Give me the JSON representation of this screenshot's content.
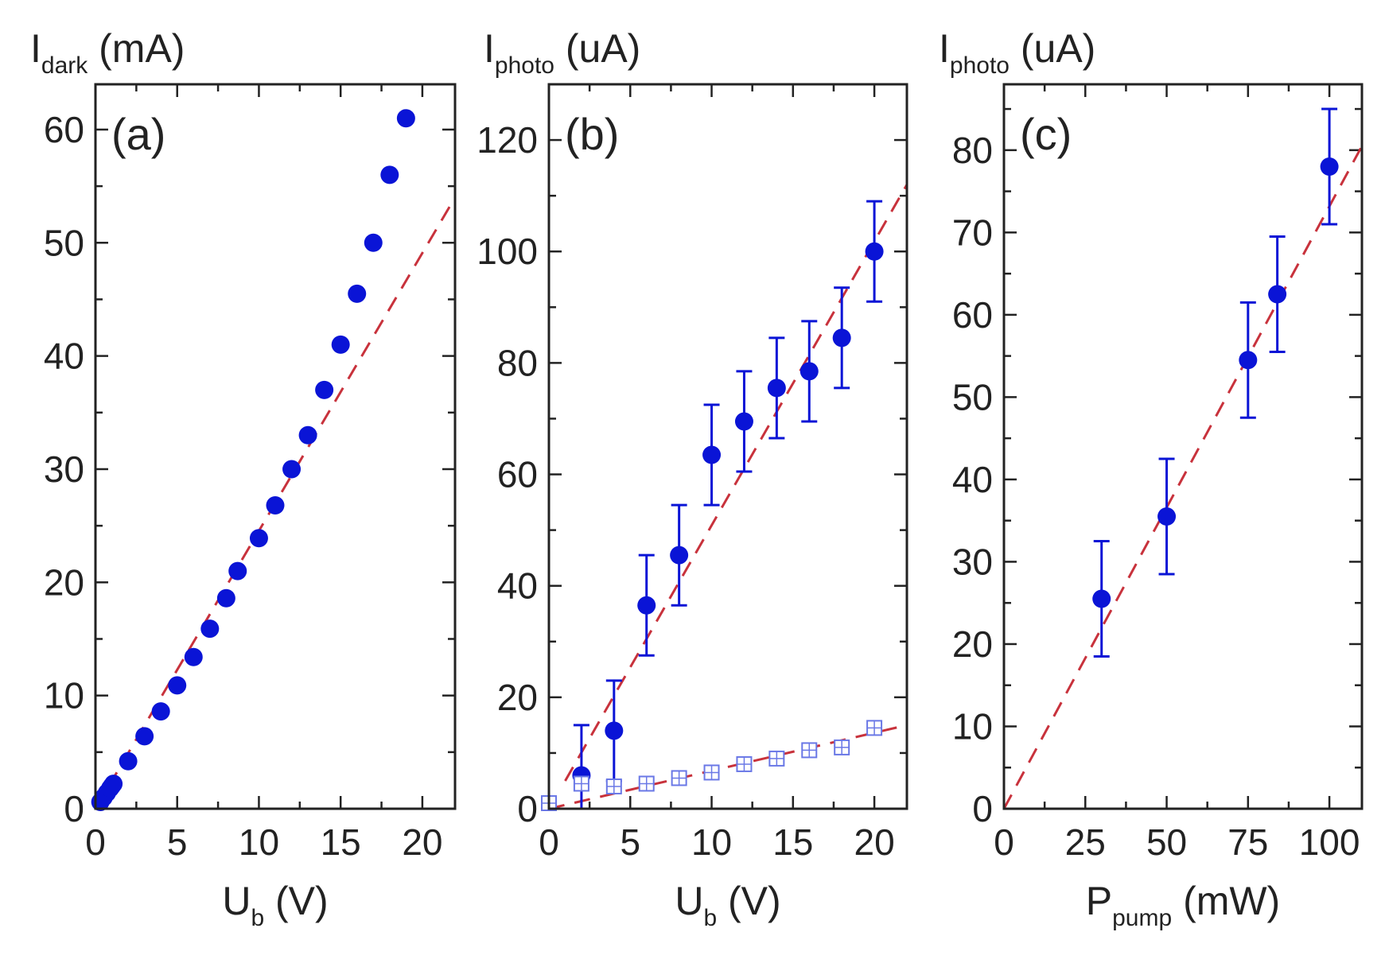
{
  "colors": {
    "marker": "#0a14d6",
    "open_marker": "#6a78e6",
    "fit_line": "#c8323c",
    "frame": "#222222"
  },
  "chart_data": [
    {
      "type": "scatter",
      "panel_label": "(a)",
      "ylabel": {
        "main": "I",
        "sub": "dark",
        "unit": "(mA)"
      },
      "xlabel": {
        "main": "U",
        "sub": "b",
        "unit": "(V)"
      },
      "xlim": [
        0,
        22
      ],
      "ylim": [
        0,
        64
      ],
      "x_ticks": [
        0,
        5,
        10,
        15,
        20
      ],
      "x_tick_labels": [
        "0",
        "5",
        "10",
        "15",
        "20"
      ],
      "y_ticks": [
        0,
        10,
        20,
        30,
        40,
        50,
        60
      ],
      "y_tick_labels": [
        "0",
        "10",
        "20",
        "30",
        "40",
        "50",
        "60"
      ],
      "series": [
        {
          "style": "filled",
          "x": [
            0.3,
            0.5,
            0.7,
            0.9,
            1.0,
            1.1,
            2.0,
            3.0,
            4.0,
            5.0,
            6.0,
            7.0,
            8.0,
            8.7,
            10.0,
            11.0,
            12.0,
            13.0,
            14.0,
            15.0,
            16.0,
            17.0,
            18.0,
            19.0
          ],
          "y": [
            0.6,
            1.0,
            1.4,
            1.8,
            2.0,
            2.2,
            4.2,
            6.4,
            8.6,
            10.9,
            13.4,
            15.9,
            18.6,
            21.0,
            23.9,
            26.8,
            30.0,
            33.0,
            37.0,
            41.0,
            45.5,
            50.0,
            56.0,
            61.0
          ]
        }
      ],
      "fits": [
        {
          "x": [
            0,
            22
          ],
          "y": [
            0,
            54
          ]
        }
      ]
    },
    {
      "type": "scatter",
      "panel_label": "(b)",
      "ylabel": {
        "main": "I",
        "sub": "photo",
        "unit": "(uA)"
      },
      "xlabel": {
        "main": "U",
        "sub": "b",
        "unit": "(V)"
      },
      "xlim": [
        0,
        22
      ],
      "ylim": [
        0,
        130
      ],
      "x_ticks": [
        0,
        5,
        10,
        15,
        20
      ],
      "x_tick_labels": [
        "0",
        "5",
        "10",
        "15",
        "20"
      ],
      "y_ticks": [
        0,
        20,
        40,
        60,
        80,
        100,
        120
      ],
      "y_tick_labels": [
        "0",
        "20",
        "40",
        "60",
        "80",
        "100",
        "120"
      ],
      "series": [
        {
          "style": "filled",
          "x": [
            2,
            4,
            6,
            8,
            10,
            12,
            14,
            16,
            18,
            20
          ],
          "y": [
            6,
            14,
            36.5,
            45.5,
            63.5,
            69.5,
            75.5,
            78.5,
            84.5,
            100
          ],
          "err": [
            9,
            9,
            9,
            9,
            9,
            9,
            9,
            9,
            9,
            9
          ]
        },
        {
          "style": "open",
          "x": [
            0,
            2,
            4,
            6,
            8,
            10,
            12,
            14,
            16,
            18,
            20
          ],
          "y": [
            1,
            4.5,
            4,
            4.5,
            5.5,
            6.5,
            8,
            9,
            10.5,
            11,
            14.5
          ]
        }
      ],
      "fits": [
        {
          "x": [
            1.0,
            22
          ],
          "y": [
            5,
            112
          ]
        },
        {
          "x": [
            0,
            22
          ],
          "y": [
            0,
            15
          ]
        }
      ]
    },
    {
      "type": "scatter",
      "panel_label": "(c)",
      "ylabel": {
        "main": "I",
        "sub": "photo",
        "unit": "(uA)"
      },
      "xlabel": {
        "main": "P",
        "sub": "pump",
        "unit": "(mW)"
      },
      "xlim": [
        0,
        110
      ],
      "ylim": [
        0,
        88
      ],
      "x_ticks": [
        0,
        25,
        50,
        75,
        100
      ],
      "x_tick_labels": [
        "0",
        "25",
        "50",
        "75",
        "100"
      ],
      "y_ticks": [
        0,
        10,
        20,
        30,
        40,
        50,
        60,
        70,
        80
      ],
      "y_tick_labels": [
        "0",
        "10",
        "20",
        "30",
        "40",
        "50",
        "60",
        "70",
        "80"
      ],
      "series": [
        {
          "style": "filled",
          "x": [
            30,
            50,
            75,
            84,
            100
          ],
          "y": [
            25.5,
            35.5,
            54.5,
            62.5,
            78
          ],
          "err": [
            7,
            7,
            7,
            7,
            7
          ]
        }
      ],
      "fits": [
        {
          "x": [
            0,
            110
          ],
          "y": [
            0,
            80.5
          ]
        }
      ]
    }
  ]
}
